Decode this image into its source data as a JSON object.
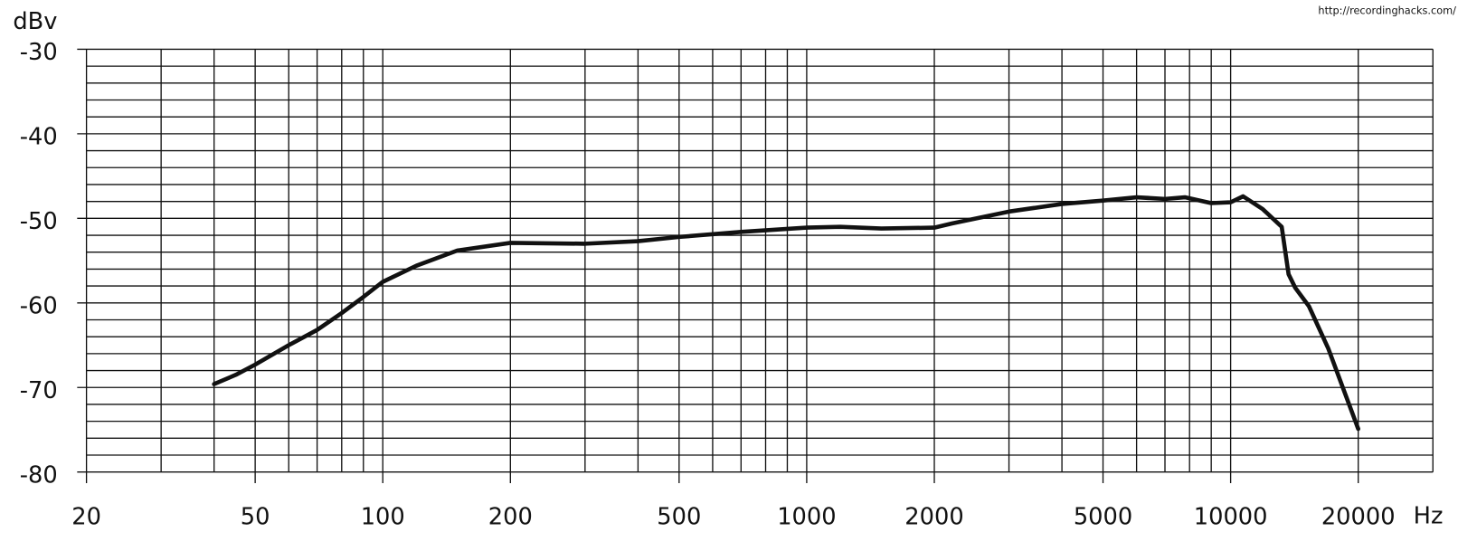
{
  "chart_data": {
    "type": "line",
    "source": "http://recordinghacks.com/",
    "ylabel": "dBv",
    "xlabel": "Hz",
    "xscale": "log",
    "xlim": [
      20,
      30000
    ],
    "ylim": [
      -80,
      -30
    ],
    "xticks": [
      20,
      50,
      100,
      200,
      500,
      1000,
      2000,
      5000,
      10000,
      20000
    ],
    "xminor": [
      30,
      40,
      60,
      70,
      80,
      90,
      300,
      400,
      600,
      700,
      800,
      900,
      3000,
      4000,
      6000,
      7000,
      8000,
      9000,
      30000
    ],
    "yticks": [
      -30,
      -40,
      -50,
      -60,
      -70,
      -80
    ],
    "yminor": [
      -32,
      -34,
      -36,
      -38,
      -42,
      -44,
      -46,
      -48,
      -52,
      -54,
      -56,
      -58,
      -62,
      -64,
      -66,
      -68,
      -72,
      -74,
      -76,
      -78
    ],
    "grid": true,
    "x": [
      40,
      45,
      50,
      60,
      70,
      80,
      90,
      100,
      120,
      150,
      200,
      300,
      400,
      500,
      700,
      1000,
      1200,
      1500,
      2000,
      2200,
      3000,
      4000,
      5000,
      6000,
      7000,
      7800,
      9000,
      10000,
      10700,
      11900,
      13200,
      13700,
      14200,
      15300,
      17000,
      20000
    ],
    "series": [
      {
        "color": "#111111",
        "values": [
          -69.6,
          -68.5,
          -67.3,
          -65.0,
          -63.2,
          -61.2,
          -59.3,
          -57.5,
          -55.6,
          -53.8,
          -52.9,
          -53.0,
          -52.7,
          -52.2,
          -51.6,
          -51.1,
          -51.0,
          -51.2,
          -51.1,
          -50.6,
          -49.2,
          -48.3,
          -47.9,
          -47.5,
          -47.7,
          -47.5,
          -48.2,
          -48.1,
          -47.4,
          -48.9,
          -51.0,
          -56.6,
          -58.2,
          -60.4,
          -65.4,
          -74.9
        ]
      }
    ]
  }
}
